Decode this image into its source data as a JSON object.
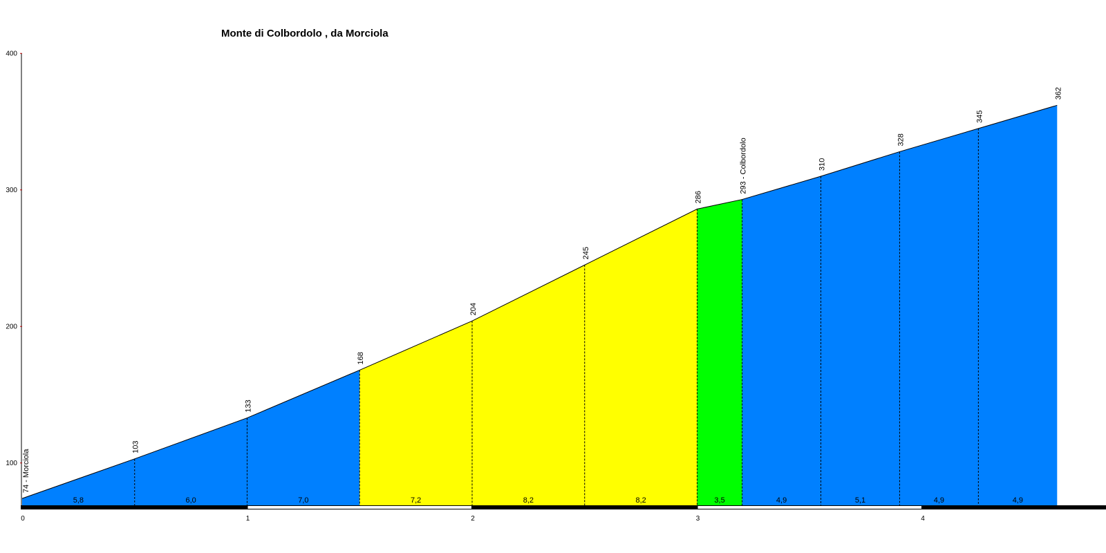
{
  "chart_data": {
    "type": "area",
    "title": "Monte di Colbordolo , da Morciola",
    "xlim": [
      0,
      4.85
    ],
    "ylim": [
      70,
      400
    ],
    "x_ticks": [
      0,
      1,
      2,
      3,
      4
    ],
    "x_tick_labels": [
      "0",
      "1",
      "2",
      "3",
      "4"
    ],
    "y_ticks": [
      100,
      200,
      300,
      400
    ],
    "y_tick_labels": [
      "100",
      "200",
      "300",
      "400"
    ],
    "points": [
      {
        "x": 0.0,
        "y": 74,
        "label": "74 - Morciola"
      },
      {
        "x": 0.5,
        "y": 103,
        "label": "103"
      },
      {
        "x": 1.0,
        "y": 133,
        "label": "133"
      },
      {
        "x": 1.5,
        "y": 168,
        "label": "168"
      },
      {
        "x": 2.0,
        "y": 204,
        "label": "204"
      },
      {
        "x": 2.5,
        "y": 245,
        "label": "245"
      },
      {
        "x": 3.0,
        "y": 286,
        "label": "286"
      },
      {
        "x": 3.2,
        "y": 293,
        "label": "293 - Colbordolo"
      },
      {
        "x": 3.55,
        "y": 310,
        "label": "310"
      },
      {
        "x": 3.9,
        "y": 328,
        "label": "328"
      },
      {
        "x": 4.25,
        "y": 345,
        "label": "345"
      },
      {
        "x": 4.6,
        "y": 362,
        "label": "362"
      }
    ],
    "segments": [
      {
        "gradient": "5,8",
        "color": "#0080ff"
      },
      {
        "gradient": "6,0",
        "color": "#0080ff"
      },
      {
        "gradient": "7,0",
        "color": "#0080ff"
      },
      {
        "gradient": "7,2",
        "color": "#ffff00"
      },
      {
        "gradient": "8,2",
        "color": "#ffff00"
      },
      {
        "gradient": "8,2",
        "color": "#ffff00"
      },
      {
        "gradient": "3,5",
        "color": "#00ff00"
      },
      {
        "gradient": "4,9",
        "color": "#0080ff"
      },
      {
        "gradient": "5,1",
        "color": "#0080ff"
      },
      {
        "gradient": "4,9",
        "color": "#0080ff"
      },
      {
        "gradient": "4,9",
        "color": "#0080ff"
      }
    ],
    "grid": false,
    "legend": "none"
  }
}
